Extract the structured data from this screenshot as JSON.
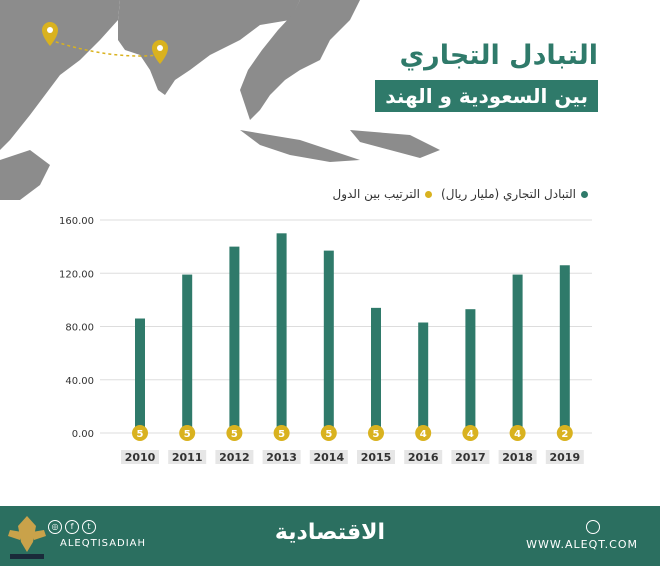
{
  "title": {
    "line1": "التبادل التجاري",
    "line2": "بين السعودية و الهند"
  },
  "legend": {
    "trade": "التبادل التجاري (مليار ريال)",
    "rank": "الترتيب بين الدول"
  },
  "colors": {
    "bar": "#2f7a6a",
    "rank_badge": "#d9b21f",
    "map_land": "#8c8c8c",
    "footer": "#2b6f60"
  },
  "footer": {
    "brand": "الاقتصادية",
    "website": "WWW.ALEQT.COM",
    "handle": "ALEQTISADIAH"
  },
  "chart_data": {
    "type": "bar",
    "categories": [
      "2010",
      "2011",
      "2012",
      "2013",
      "2014",
      "2015",
      "2016",
      "2017",
      "2018",
      "2019"
    ],
    "values": [
      86,
      119,
      140,
      150,
      137,
      94,
      83,
      93,
      119,
      126
    ],
    "ranks": [
      5,
      5,
      5,
      5,
      5,
      5,
      4,
      4,
      4,
      2
    ],
    "ylim": [
      0,
      160
    ],
    "yticks": [
      "0.00",
      "40.00",
      "80.00",
      "120.00",
      "160.00"
    ],
    "grid": true,
    "legend_position": "top-right"
  }
}
